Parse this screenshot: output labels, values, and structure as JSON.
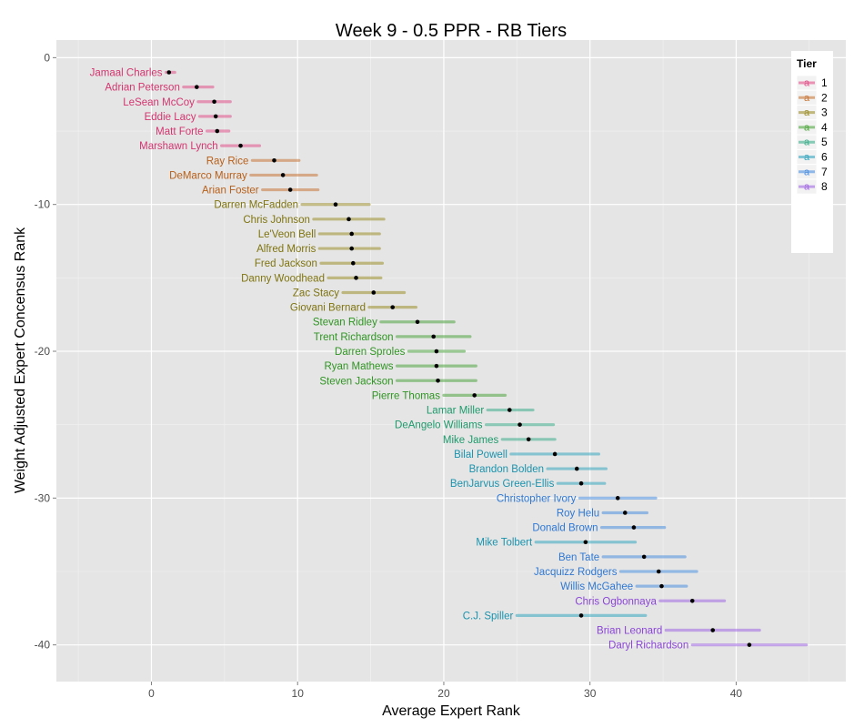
{
  "chart_data": {
    "type": "scatter",
    "title": "Week 9 - 0.5 PPR - RB Tiers",
    "xlabel": "Average Expert Rank",
    "ylabel": "Weight Adjusted Expert Concensus Rank",
    "xlim": [
      -6.5,
      47.5
    ],
    "ylim": [
      -42.5,
      1.2
    ],
    "x_ticks": [
      0,
      10,
      20,
      30,
      40
    ],
    "y_ticks": [
      0,
      -10,
      -20,
      -30,
      -40
    ],
    "x_tick_labels": [
      "0",
      "10",
      "20",
      "30",
      "40"
    ],
    "y_tick_labels": [
      "0",
      "-10",
      "-20",
      "-30",
      "-40"
    ],
    "grid": true,
    "legend": {
      "title": "Tier",
      "position": "right",
      "key_glyph": "a",
      "entries": [
        {
          "label": "1",
          "color": "#e2528b"
        },
        {
          "label": "2",
          "color": "#c8783a"
        },
        {
          "label": "3",
          "color": "#9d8f2c"
        },
        {
          "label": "4",
          "color": "#4fa63f"
        },
        {
          "label": "5",
          "color": "#3eae8c"
        },
        {
          "label": "6",
          "color": "#38a7bf"
        },
        {
          "label": "7",
          "color": "#4d8fe0"
        },
        {
          "label": "8",
          "color": "#a168e3"
        }
      ]
    },
    "label_colors": {
      "1": "#d4356f",
      "2": "#b85f18",
      "3": "#7f7410",
      "4": "#2f9522",
      "5": "#1d9a6c",
      "6": "#1b93ad",
      "7": "#2f78d4",
      "8": "#8b45d8"
    },
    "players": [
      {
        "name": "Jamaal Charles",
        "tier": 1,
        "rank": -1,
        "avg": 1.2,
        "lo": 1.0,
        "hi": 1.6
      },
      {
        "name": "Adrian Peterson",
        "tier": 1,
        "rank": -2,
        "avg": 3.1,
        "lo": 2.2,
        "hi": 4.2
      },
      {
        "name": "LeSean McCoy",
        "tier": 1,
        "rank": -3,
        "avg": 4.3,
        "lo": 3.2,
        "hi": 5.4
      },
      {
        "name": "Eddie Lacy",
        "tier": 1,
        "rank": -4,
        "avg": 4.4,
        "lo": 3.3,
        "hi": 5.4
      },
      {
        "name": "Matt Forte",
        "tier": 1,
        "rank": -5,
        "avg": 4.5,
        "lo": 3.8,
        "hi": 5.3
      },
      {
        "name": "Marshawn Lynch",
        "tier": 1,
        "rank": -6,
        "avg": 6.1,
        "lo": 4.8,
        "hi": 7.4
      },
      {
        "name": "Ray Rice",
        "tier": 2,
        "rank": -7,
        "avg": 8.4,
        "lo": 6.9,
        "hi": 10.1
      },
      {
        "name": "DeMarco Murray",
        "tier": 2,
        "rank": -8,
        "avg": 9.0,
        "lo": 6.8,
        "hi": 11.3
      },
      {
        "name": "Arian Foster",
        "tier": 2,
        "rank": -9,
        "avg": 9.5,
        "lo": 7.6,
        "hi": 11.4
      },
      {
        "name": "Darren McFadden",
        "tier": 3,
        "rank": -10,
        "avg": 12.6,
        "lo": 10.3,
        "hi": 14.9
      },
      {
        "name": "Chris Johnson",
        "tier": 3,
        "rank": -11,
        "avg": 13.5,
        "lo": 11.1,
        "hi": 15.9
      },
      {
        "name": "Le'Veon Bell",
        "tier": 3,
        "rank": -12,
        "avg": 13.7,
        "lo": 11.5,
        "hi": 15.6
      },
      {
        "name": "Alfred Morris",
        "tier": 3,
        "rank": -13,
        "avg": 13.7,
        "lo": 11.5,
        "hi": 15.6
      },
      {
        "name": "Fred Jackson",
        "tier": 3,
        "rank": -14,
        "avg": 13.8,
        "lo": 11.6,
        "hi": 15.8
      },
      {
        "name": "Danny Woodhead",
        "tier": 3,
        "rank": -15,
        "avg": 14.0,
        "lo": 12.1,
        "hi": 15.7
      },
      {
        "name": "Zac Stacy",
        "tier": 3,
        "rank": -16,
        "avg": 15.2,
        "lo": 13.1,
        "hi": 17.3
      },
      {
        "name": "Giovani Bernard",
        "tier": 3,
        "rank": -17,
        "avg": 16.5,
        "lo": 14.9,
        "hi": 18.1
      },
      {
        "name": "Stevan Ridley",
        "tier": 4,
        "rank": -18,
        "avg": 18.2,
        "lo": 15.7,
        "hi": 20.7
      },
      {
        "name": "Trent Richardson",
        "tier": 4,
        "rank": -19,
        "avg": 19.3,
        "lo": 16.8,
        "hi": 21.8
      },
      {
        "name": "Darren Sproles",
        "tier": 4,
        "rank": -20,
        "avg": 19.5,
        "lo": 17.6,
        "hi": 21.4
      },
      {
        "name": "Ryan Mathews",
        "tier": 4,
        "rank": -21,
        "avg": 19.5,
        "lo": 16.8,
        "hi": 22.2
      },
      {
        "name": "Steven Jackson",
        "tier": 4,
        "rank": -22,
        "avg": 19.6,
        "lo": 16.8,
        "hi": 22.2
      },
      {
        "name": "Pierre Thomas",
        "tier": 4,
        "rank": -23,
        "avg": 22.1,
        "lo": 20.0,
        "hi": 24.2
      },
      {
        "name": "Lamar Miller",
        "tier": 5,
        "rank": -24,
        "avg": 24.5,
        "lo": 23.0,
        "hi": 26.1
      },
      {
        "name": "DeAngelo Williams",
        "tier": 5,
        "rank": -25,
        "avg": 25.2,
        "lo": 22.9,
        "hi": 27.5
      },
      {
        "name": "Mike James",
        "tier": 5,
        "rank": -26,
        "avg": 25.8,
        "lo": 24.0,
        "hi": 27.6
      },
      {
        "name": "Bilal Powell",
        "tier": 6,
        "rank": -27,
        "avg": 27.6,
        "lo": 24.6,
        "hi": 30.6
      },
      {
        "name": "Brandon Bolden",
        "tier": 6,
        "rank": -28,
        "avg": 29.1,
        "lo": 27.1,
        "hi": 31.1
      },
      {
        "name": "BenJarvus Green-Ellis",
        "tier": 6,
        "rank": -29,
        "avg": 29.4,
        "lo": 27.8,
        "hi": 31.0
      },
      {
        "name": "Christopher Ivory",
        "tier": 7,
        "rank": -30,
        "avg": 31.9,
        "lo": 29.3,
        "hi": 34.5
      },
      {
        "name": "Roy Helu",
        "tier": 7,
        "rank": -31,
        "avg": 32.4,
        "lo": 30.9,
        "hi": 33.9
      },
      {
        "name": "Donald Brown",
        "tier": 7,
        "rank": -32,
        "avg": 33.0,
        "lo": 30.8,
        "hi": 35.1
      },
      {
        "name": "Mike Tolbert",
        "tier": 6,
        "rank": -33,
        "avg": 29.7,
        "lo": 26.3,
        "hi": 33.1
      },
      {
        "name": "Ben Tate",
        "tier": 7,
        "rank": -34,
        "avg": 33.7,
        "lo": 30.9,
        "hi": 36.5
      },
      {
        "name": "Jacquizz Rodgers",
        "tier": 7,
        "rank": -35,
        "avg": 34.7,
        "lo": 32.1,
        "hi": 37.3
      },
      {
        "name": "Willis McGahee",
        "tier": 7,
        "rank": -36,
        "avg": 34.9,
        "lo": 33.2,
        "hi": 36.6
      },
      {
        "name": "Chris Ogbonnaya",
        "tier": 8,
        "rank": -37,
        "avg": 37.0,
        "lo": 34.8,
        "hi": 39.2
      },
      {
        "name": "C.J. Spiller",
        "tier": 6,
        "rank": -38,
        "avg": 29.4,
        "lo": 25.0,
        "hi": 33.8
      },
      {
        "name": "Brian Leonard",
        "tier": 8,
        "rank": -39,
        "avg": 38.4,
        "lo": 35.2,
        "hi": 41.6
      },
      {
        "name": "Daryl Richardson",
        "tier": 8,
        "rank": -40,
        "avg": 40.9,
        "lo": 37.0,
        "hi": 44.8
      }
    ]
  }
}
